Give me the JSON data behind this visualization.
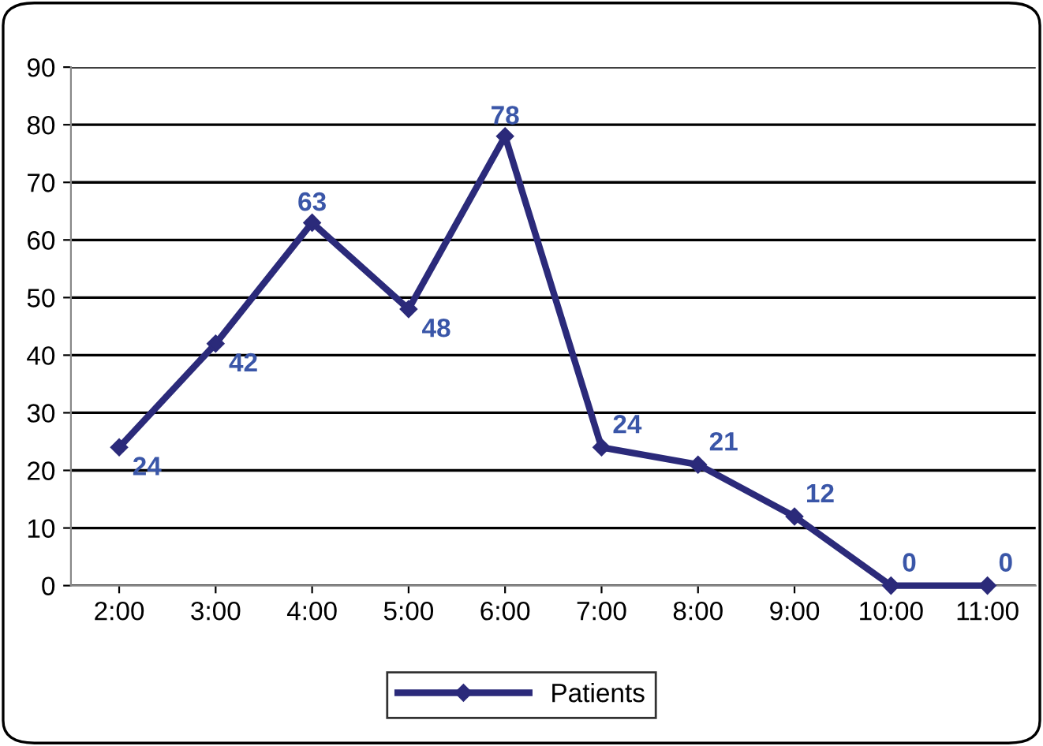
{
  "chart_data": {
    "type": "line",
    "categories": [
      "2:00",
      "3:00",
      "4:00",
      "5:00",
      "6:00",
      "7:00",
      "8:00",
      "9:00",
      "10:00",
      "11:00"
    ],
    "series": [
      {
        "name": "Patients",
        "color": "#2b2a7a",
        "values": [
          24,
          42,
          63,
          48,
          78,
          24,
          21,
          12,
          0,
          0
        ]
      }
    ],
    "ylim": [
      0,
      90
    ],
    "yticks": [
      0,
      10,
      20,
      30,
      40,
      50,
      60,
      70,
      80,
      90
    ],
    "grid": "y",
    "legend": "bottom",
    "marker": "diamond",
    "line_style": "solid",
    "data_labels": true
  }
}
